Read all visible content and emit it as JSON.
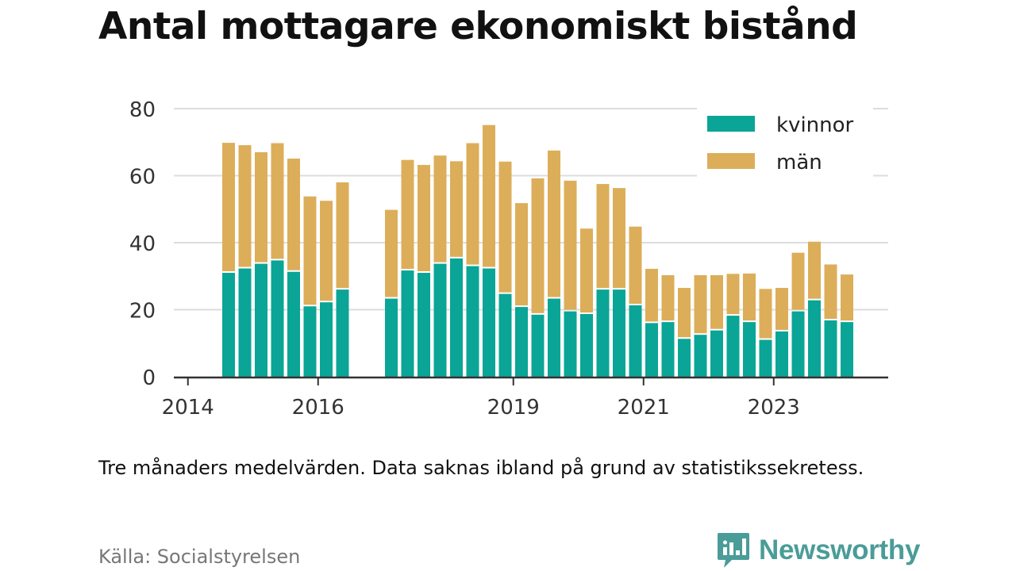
{
  "title": "Antal mottagare ekonomiskt bistånd",
  "note": "Tre månaders medelvärden. Data saknas ibland på grund av statistikssekretess.",
  "source": "Källa: Socialstyrelsen",
  "brand": {
    "name": "Newsworthy",
    "icon": "newsworthy-logo-icon",
    "color": "#4a9c98"
  },
  "colors": {
    "kvinnor": "#0aa596",
    "man": "#dcae5a",
    "grid": "#dddddd",
    "axis": "#333333"
  },
  "chart_data": {
    "type": "bar",
    "stacked": true,
    "x_ticks": [
      "2014",
      "2016",
      "2019",
      "2021",
      "2023"
    ],
    "y_ticks": [
      "0",
      "20",
      "40",
      "60",
      "80"
    ],
    "ylim": [
      0,
      80
    ],
    "legend_position": "top-right",
    "grid": true,
    "x": [
      "2014-Q3",
      "2014-Q4",
      "2015-Q1",
      "2015-Q2",
      "2015-Q3",
      "2015-Q4",
      "2016-Q1",
      "2016-Q2",
      "2017-Q1",
      "2017-Q2",
      "2017-Q3",
      "2017-Q4",
      "2018-Q1",
      "2018-Q2",
      "2018-Q3",
      "2018-Q4",
      "2019-Q1",
      "2019-Q2",
      "2019-Q3",
      "2019-Q4",
      "2020-Q1",
      "2020-Q2",
      "2020-Q3",
      "2020-Q4",
      "2021-Q1",
      "2021-Q2",
      "2021-Q3",
      "2021-Q4",
      "2022-Q1",
      "2022-Q2",
      "2022-Q3",
      "2022-Q4",
      "2023-Q1",
      "2023-Q2",
      "2023-Q3",
      "2023-Q4",
      "2024-Q1"
    ],
    "series": [
      {
        "name": "kvinnor",
        "values": [
          31,
          32.3,
          33.7,
          34.7,
          31.3,
          21,
          22.2,
          26,
          23.3,
          31.7,
          31,
          33.7,
          35.3,
          33,
          32.3,
          24.7,
          20.8,
          18.5,
          23.3,
          19.5,
          18.7,
          26,
          26,
          21.3,
          16,
          16.3,
          11.3,
          12.5,
          13.8,
          18.2,
          16.3,
          11,
          13.5,
          19.5,
          22.8,
          16.8,
          16.3
        ]
      },
      {
        "name": "män",
        "values": [
          38.8,
          36.8,
          33.3,
          35,
          33.8,
          32.8,
          30.3,
          32,
          26.5,
          33,
          32.2,
          32.3,
          29,
          36.7,
          42.8,
          39.5,
          31,
          40.7,
          44.2,
          39,
          25.5,
          31.5,
          30.3,
          23.5,
          16.2,
          14,
          15.2,
          17.8,
          16.5,
          12.5,
          14.5,
          15.2,
          13,
          17.5,
          17.5,
          16.7,
          14.2
        ]
      }
    ]
  }
}
